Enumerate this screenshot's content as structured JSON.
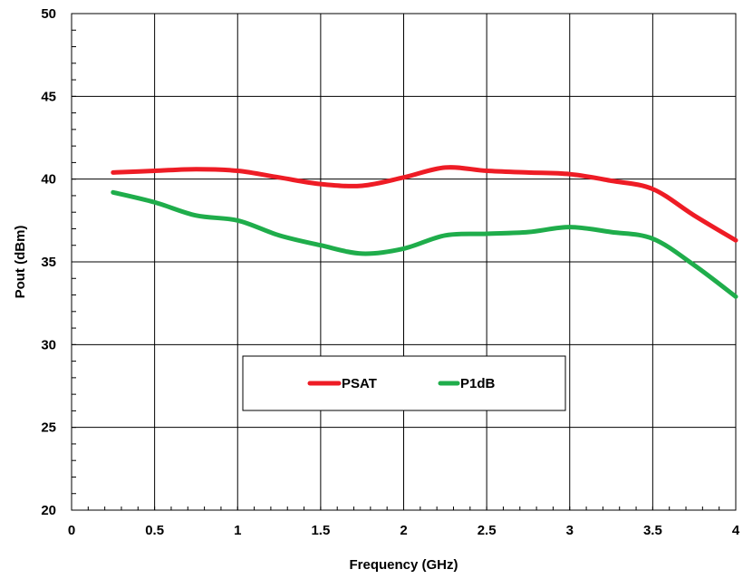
{
  "chart_data": {
    "type": "line",
    "title": "",
    "xlabel": "Frequency (GHz)",
    "ylabel": "Pout (dBm)",
    "xlim": [
      0,
      4
    ],
    "ylim": [
      20,
      50
    ],
    "xticks": [
      0,
      0.5,
      1,
      1.5,
      2,
      2.5,
      3,
      3.5,
      4
    ],
    "xtick_labels": [
      "0",
      "0.5",
      "1",
      "1.5",
      "2",
      "2.5",
      "3",
      "3.5",
      "4"
    ],
    "yticks": [
      20,
      25,
      30,
      35,
      40,
      45,
      50
    ],
    "ytick_labels": [
      "20",
      "25",
      "30",
      "35",
      "40",
      "45",
      "50"
    ],
    "grid": true,
    "legend_position": "center-bottom (boxed)",
    "series": [
      {
        "name": "PSAT",
        "color": "#ee1c25",
        "x": [
          0.25,
          0.5,
          0.75,
          1.0,
          1.25,
          1.5,
          1.75,
          2.0,
          2.25,
          2.5,
          2.75,
          3.0,
          3.25,
          3.5,
          3.75,
          4.0
        ],
        "y": [
          40.4,
          40.5,
          40.6,
          40.5,
          40.1,
          39.7,
          39.6,
          40.1,
          40.7,
          40.5,
          40.4,
          40.3,
          39.9,
          39.4,
          37.8,
          36.3
        ]
      },
      {
        "name": "P1dB",
        "color": "#1fad4b",
        "x": [
          0.25,
          0.5,
          0.75,
          1.0,
          1.25,
          1.5,
          1.75,
          2.0,
          2.25,
          2.5,
          2.75,
          3.0,
          3.25,
          3.5,
          3.75,
          4.0
        ],
        "y": [
          39.2,
          38.6,
          37.8,
          37.5,
          36.6,
          36.0,
          35.5,
          35.8,
          36.6,
          36.7,
          36.8,
          37.1,
          36.8,
          36.4,
          34.8,
          32.9
        ]
      }
    ]
  }
}
